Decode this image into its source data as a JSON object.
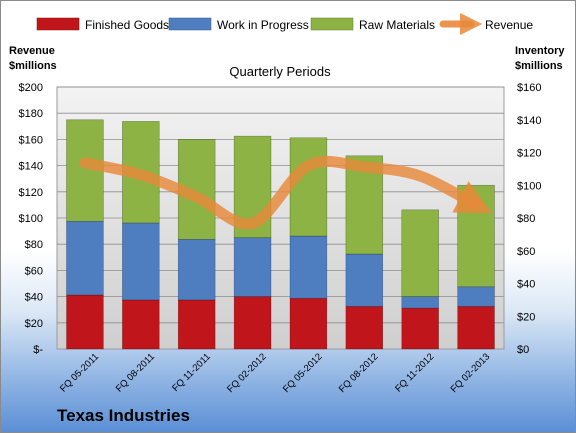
{
  "chart_data": {
    "type": "bar",
    "stacked": true,
    "subtitle": "Quarterly Periods",
    "company": "Texas Industries",
    "left_axis": {
      "label_line1": "Revenue",
      "label_line2": "$millions",
      "ylim": [
        0,
        200
      ],
      "ticks": [
        0,
        20,
        40,
        60,
        80,
        100,
        120,
        140,
        160,
        180,
        200
      ],
      "tick_labels": [
        "$-",
        "$20",
        "$40",
        "$60",
        "$80",
        "$100",
        "$120",
        "$140",
        "$160",
        "$180",
        "$200"
      ]
    },
    "right_axis": {
      "label_line1": "Inventory",
      "label_line2": "$millions",
      "ylim": [
        0,
        160
      ],
      "ticks": [
        0,
        20,
        40,
        60,
        80,
        100,
        120,
        140,
        160
      ],
      "tick_labels": [
        "$0",
        "$20",
        "$40",
        "$60",
        "$80",
        "$100",
        "$120",
        "$140",
        "$160"
      ]
    },
    "categories": [
      "FQ 05-2011",
      "FQ 08-2011",
      "FQ 11-2011",
      "FQ 02-2012",
      "FQ 05-2012",
      "FQ 08-2012",
      "FQ 11-2012",
      "FQ 02-2013"
    ],
    "series": [
      {
        "name": "Finished Goods",
        "axis": "right",
        "color": "#c0151b",
        "values": [
          33,
          30,
          30,
          32,
          31,
          26,
          25,
          26
        ]
      },
      {
        "name": "Work in Progress",
        "axis": "right",
        "color": "#4f7ec0",
        "values": [
          45,
          47,
          37,
          36,
          38,
          32,
          7,
          12
        ]
      },
      {
        "name": "Raw Materials",
        "axis": "right",
        "color": "#8db344",
        "values": [
          62,
          62,
          61,
          62,
          60,
          60,
          53,
          62
        ]
      }
    ],
    "line_series": {
      "name": "Revenue",
      "axis": "left",
      "color": "#e8893a",
      "values": [
        142,
        133,
        116,
        96,
        140,
        139,
        132,
        110
      ]
    },
    "grid": true,
    "legend_position": "top"
  }
}
